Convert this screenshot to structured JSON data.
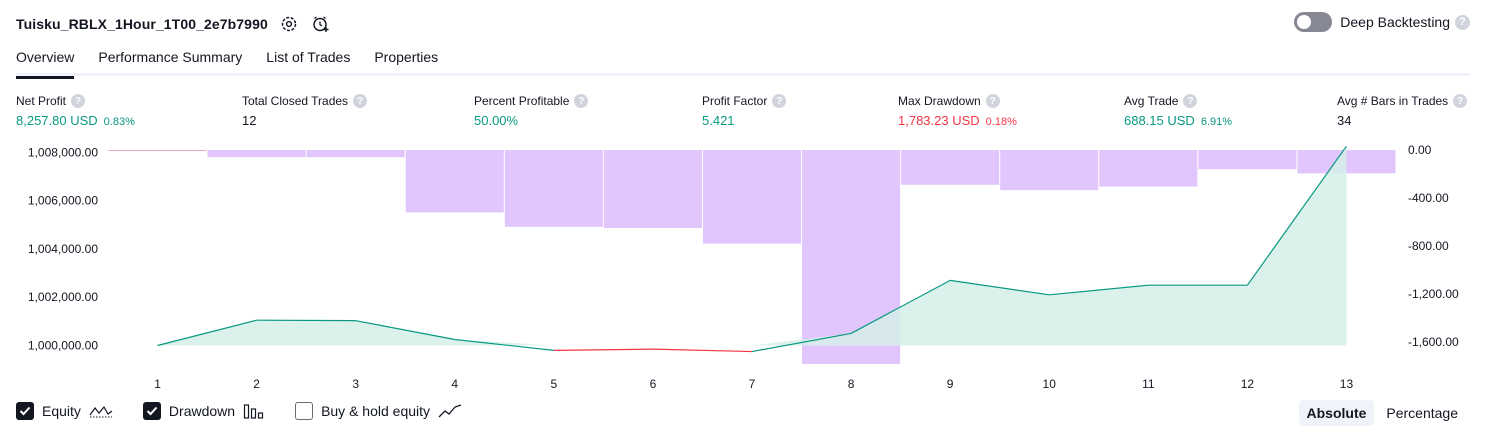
{
  "strategy": {
    "name": "Tuisku_RBLX_1Hour_1T00_2e7b7990"
  },
  "deep_backtesting": {
    "label": "Deep Backtesting",
    "enabled": false
  },
  "tabs": [
    {
      "label": "Overview",
      "active": true
    },
    {
      "label": "Performance Summary",
      "active": false
    },
    {
      "label": "List of Trades",
      "active": false
    },
    {
      "label": "Properties",
      "active": false
    }
  ],
  "metrics": {
    "net_profit": {
      "label": "Net Profit",
      "value": "8,257.80 USD",
      "pct": "0.83%"
    },
    "total_closed_trades": {
      "label": "Total Closed Trades",
      "value": "12"
    },
    "percent_profitable": {
      "label": "Percent Profitable",
      "value": "50.00%"
    },
    "profit_factor": {
      "label": "Profit Factor",
      "value": "5.421"
    },
    "max_drawdown": {
      "label": "Max Drawdown",
      "value": "1,783.23 USD",
      "pct": "0.18%"
    },
    "avg_trade": {
      "label": "Avg Trade",
      "value": "688.15 USD",
      "pct": "6.91%"
    },
    "avg_bars": {
      "label": "Avg # Bars in Trades",
      "value": "34"
    }
  },
  "legend": {
    "equity": {
      "label": "Equity",
      "checked": true
    },
    "drawdown": {
      "label": "Drawdown",
      "checked": true
    },
    "buy_hold": {
      "label": "Buy & hold equity",
      "checked": false
    }
  },
  "modes": {
    "absolute": "Absolute",
    "percentage": "Percentage",
    "active": "Absolute"
  },
  "chart_data": {
    "type": "line",
    "x": [
      1,
      2,
      3,
      4,
      5,
      6,
      7,
      8,
      9,
      10,
      11,
      12,
      13
    ],
    "series": [
      {
        "name": "Equity",
        "axis": "left",
        "values": [
          1000000,
          1001050,
          1001030,
          1000250,
          999800,
          999850,
          999750,
          1000500,
          1002700,
          1002100,
          1002500,
          1002500,
          1008257.8
        ]
      },
      {
        "name": "Drawdown",
        "axis": "right",
        "kind": "bar",
        "values": [
          0,
          -60,
          -60,
          -520,
          -640,
          -650,
          -780,
          -1783.23,
          -290,
          -335,
          -305,
          -160,
          -195
        ]
      }
    ],
    "left_ticks": [
      "1,008,000.00",
      "1,006,000.00",
      "1,004,000.00",
      "1,002,000.00",
      "1,000,000.00"
    ],
    "right_ticks": [
      "0.00",
      "-400.00",
      "-800.00",
      "-1,200.00",
      "-1,600.00"
    ],
    "left_ylim": [
      999400,
      1008100
    ],
    "right_ylim": [
      -1750,
      0
    ],
    "colors": {
      "equity_up": "#089981",
      "equity_down": "#f23645",
      "equity_fill": "#d5efe9",
      "drawdown_bar": "#e1c6fd",
      "drawdown_line": "#f0a8c8"
    }
  }
}
